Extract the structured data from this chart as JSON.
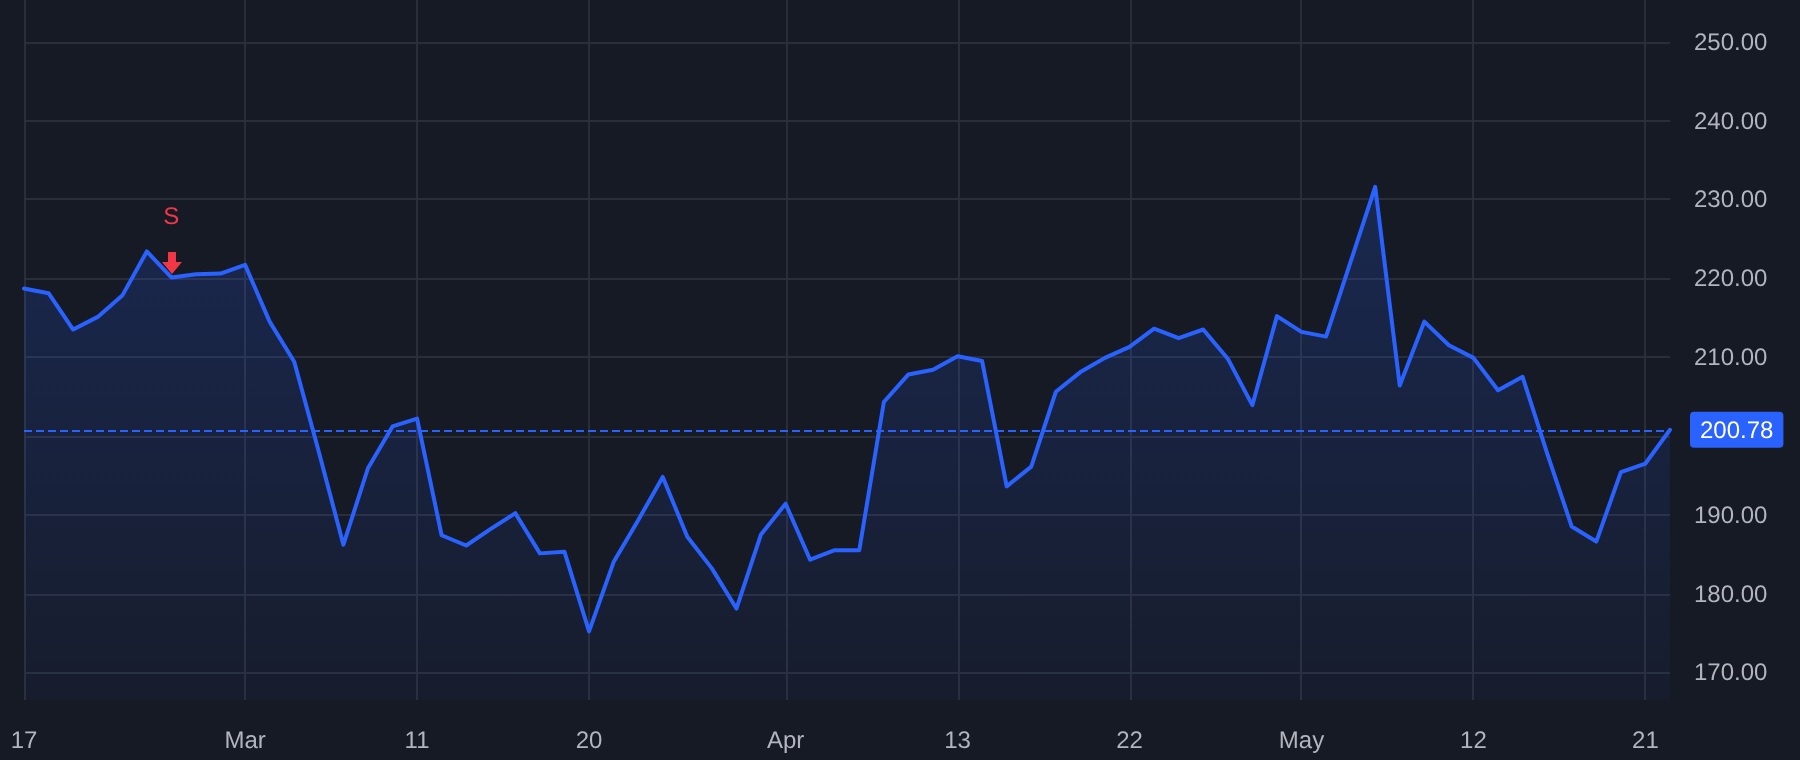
{
  "chart_data": {
    "type": "area",
    "categories": [
      "17",
      null,
      null,
      null,
      null,
      null,
      null,
      null,
      null,
      "Mar",
      null,
      null,
      null,
      null,
      null,
      null,
      "11",
      null,
      null,
      null,
      null,
      null,
      null,
      "20",
      null,
      null,
      null,
      null,
      null,
      null,
      null,
      "Apr",
      null,
      null,
      null,
      null,
      null,
      null,
      "13",
      null,
      null,
      null,
      null,
      null,
      null,
      "22",
      null,
      null,
      null,
      null,
      null,
      null,
      "May",
      null,
      null,
      null,
      null,
      null,
      null,
      "12",
      null,
      null,
      null,
      null,
      null,
      null,
      "21",
      null
    ],
    "series": [
      {
        "color": "#2962ff",
        "values": [
          218.7,
          218.1,
          213.5,
          215.1,
          217.8,
          223.4,
          220.1,
          220.5,
          220.6,
          221.7,
          214.5,
          209.4,
          198.0,
          186.2,
          195.9,
          201.2,
          202.2,
          187.4,
          186.1,
          188.2,
          190.2,
          185.1,
          185.3,
          175.2,
          184.0,
          189.3,
          194.8,
          187.2,
          183.2,
          178.1,
          187.5,
          191.4,
          184.3,
          185.5,
          185.5,
          204.3,
          207.8,
          208.4,
          210.1,
          209.5,
          193.6,
          196.1,
          205.6,
          208.1,
          209.9,
          211.3,
          213.6,
          212.4,
          213.5,
          209.8,
          203.9,
          215.2,
          213.2,
          212.6,
          222.1,
          231.6,
          206.4,
          214.5,
          211.5,
          209.9,
          205.8,
          207.5,
          197.8,
          188.5,
          186.6,
          195.4,
          196.5,
          200.78
        ]
      }
    ],
    "ylim": [
      166.5,
      255.3
    ],
    "yticks": [
      {
        "value": 170,
        "label": "170.00"
      },
      {
        "value": 180,
        "label": "180.00"
      },
      {
        "value": 190,
        "label": "190.00"
      },
      {
        "value": 200,
        "label": null
      },
      {
        "value": 210,
        "label": "210.00"
      },
      {
        "value": 220,
        "label": "220.00"
      },
      {
        "value": 230,
        "label": "230.00"
      },
      {
        "value": 240,
        "label": "240.00"
      },
      {
        "value": 250,
        "label": "250.00"
      }
    ],
    "ref_lines": [
      {
        "axis": "y",
        "value": 200.78,
        "label": "200.78",
        "color": "#2962ff",
        "line_style": "dashed"
      }
    ],
    "annotations": [
      {
        "text": "S",
        "y": 220.1
      }
    ],
    "grid": true,
    "marker": "none",
    "line_style": "solid"
  }
}
